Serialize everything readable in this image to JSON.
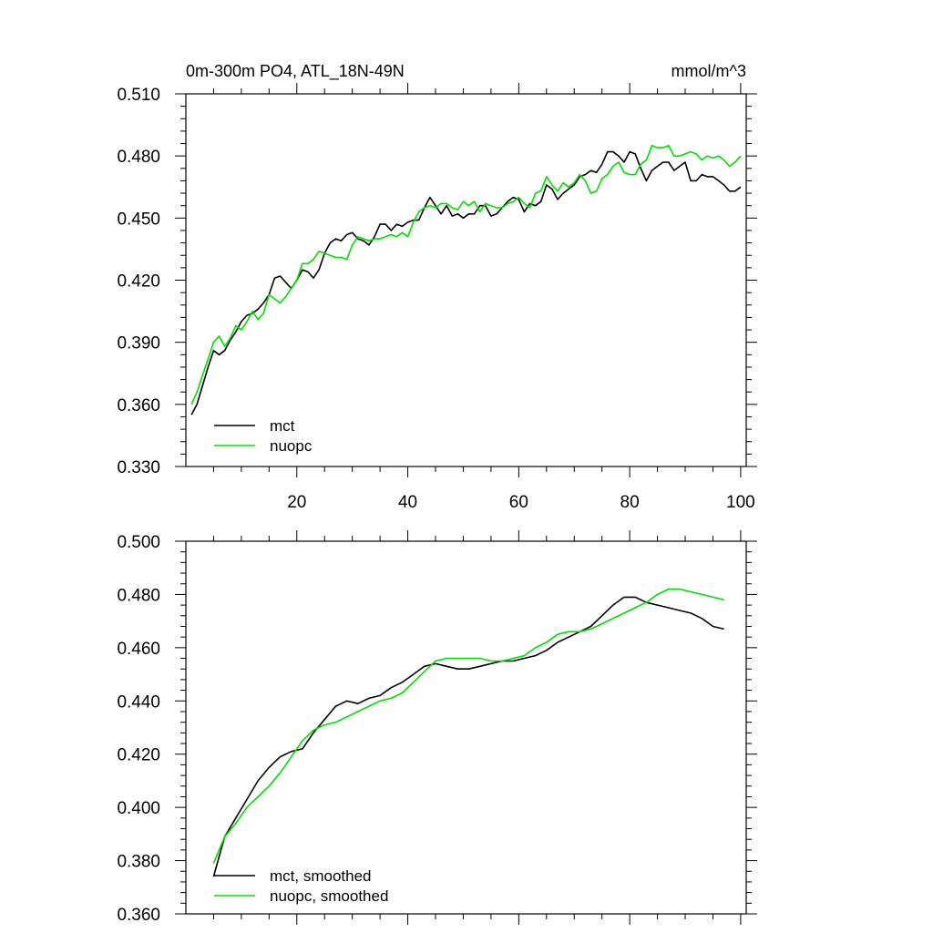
{
  "chart_data": [
    {
      "type": "line",
      "title": "0m-300m PO4, ATL_18N-49N",
      "units": "mmol/m^3",
      "xlim": [
        0,
        101
      ],
      "ylim": [
        0.33,
        0.51
      ],
      "xticks": [
        20,
        40,
        60,
        80,
        100
      ],
      "xtick_labels": [
        "20",
        "40",
        "60",
        "80",
        "100"
      ],
      "yticks": [
        0.33,
        0.36,
        0.39,
        0.42,
        0.45,
        0.48,
        0.51
      ],
      "ytick_labels": [
        "0.330",
        "0.360",
        "0.390",
        "0.420",
        "0.450",
        "0.480",
        "0.510"
      ],
      "legend_position": "lower-left",
      "series": [
        {
          "name": "mct",
          "color": "#000000",
          "x": [
            1,
            2,
            3,
            4,
            5,
            6,
            7,
            8,
            9,
            10,
            11,
            12,
            13,
            14,
            15,
            16,
            17,
            18,
            19,
            20,
            21,
            22,
            23,
            24,
            25,
            26,
            27,
            28,
            29,
            30,
            31,
            32,
            33,
            34,
            35,
            36,
            37,
            38,
            39,
            40,
            41,
            42,
            43,
            44,
            45,
            46,
            47,
            48,
            49,
            50,
            51,
            52,
            53,
            54,
            55,
            56,
            57,
            58,
            59,
            60,
            61,
            62,
            63,
            64,
            65,
            66,
            67,
            68,
            69,
            70,
            71,
            72,
            73,
            74,
            75,
            76,
            77,
            78,
            79,
            80,
            81,
            82,
            83,
            84,
            85,
            86,
            87,
            88,
            89,
            90,
            91,
            92,
            93,
            94,
            95,
            96,
            97,
            98,
            99,
            100
          ],
          "values": [
            0.355,
            0.36,
            0.369,
            0.378,
            0.386,
            0.384,
            0.386,
            0.391,
            0.395,
            0.4,
            0.403,
            0.404,
            0.406,
            0.409,
            0.413,
            0.421,
            0.422,
            0.419,
            0.416,
            0.42,
            0.425,
            0.424,
            0.421,
            0.425,
            0.433,
            0.438,
            0.44,
            0.439,
            0.442,
            0.443,
            0.44,
            0.439,
            0.437,
            0.441,
            0.447,
            0.447,
            0.444,
            0.447,
            0.446,
            0.448,
            0.449,
            0.449,
            0.455,
            0.46,
            0.456,
            0.452,
            0.456,
            0.451,
            0.452,
            0.45,
            0.452,
            0.452,
            0.456,
            0.456,
            0.451,
            0.452,
            0.455,
            0.458,
            0.46,
            0.459,
            0.453,
            0.457,
            0.456,
            0.458,
            0.466,
            0.464,
            0.459,
            0.462,
            0.464,
            0.466,
            0.47,
            0.471,
            0.473,
            0.472,
            0.476,
            0.482,
            0.482,
            0.48,
            0.477,
            0.482,
            0.481,
            0.474,
            0.468,
            0.473,
            0.475,
            0.477,
            0.477,
            0.473,
            0.475,
            0.477,
            0.468,
            0.468,
            0.471,
            0.47,
            0.47,
            0.468,
            0.466,
            0.463,
            0.463,
            0.465
          ]
        },
        {
          "name": "nuopc",
          "color": "#00e000",
          "x": [
            1,
            2,
            3,
            4,
            5,
            6,
            7,
            8,
            9,
            10,
            11,
            12,
            13,
            14,
            15,
            16,
            17,
            18,
            19,
            20,
            21,
            22,
            23,
            24,
            25,
            26,
            27,
            28,
            29,
            30,
            31,
            32,
            33,
            34,
            35,
            36,
            37,
            38,
            39,
            40,
            41,
            42,
            43,
            44,
            45,
            46,
            47,
            48,
            49,
            50,
            51,
            52,
            53,
            54,
            55,
            56,
            57,
            58,
            59,
            60,
            61,
            62,
            63,
            64,
            65,
            66,
            67,
            68,
            69,
            70,
            71,
            72,
            73,
            74,
            75,
            76,
            77,
            78,
            79,
            80,
            81,
            82,
            83,
            84,
            85,
            86,
            87,
            88,
            89,
            90,
            91,
            92,
            93,
            94,
            95,
            96,
            97,
            98,
            99,
            100
          ],
          "values": [
            0.36,
            0.366,
            0.374,
            0.382,
            0.39,
            0.393,
            0.388,
            0.392,
            0.398,
            0.396,
            0.4,
            0.405,
            0.401,
            0.404,
            0.413,
            0.411,
            0.409,
            0.412,
            0.416,
            0.42,
            0.428,
            0.428,
            0.43,
            0.434,
            0.433,
            0.432,
            0.431,
            0.431,
            0.43,
            0.437,
            0.441,
            0.44,
            0.439,
            0.44,
            0.44,
            0.441,
            0.442,
            0.441,
            0.443,
            0.441,
            0.448,
            0.453,
            0.455,
            0.456,
            0.455,
            0.457,
            0.457,
            0.455,
            0.454,
            0.458,
            0.456,
            0.458,
            0.453,
            0.457,
            0.456,
            0.455,
            0.455,
            0.457,
            0.458,
            0.46,
            0.457,
            0.455,
            0.462,
            0.463,
            0.47,
            0.466,
            0.463,
            0.467,
            0.465,
            0.467,
            0.471,
            0.468,
            0.462,
            0.463,
            0.469,
            0.471,
            0.475,
            0.477,
            0.472,
            0.471,
            0.471,
            0.476,
            0.478,
            0.485,
            0.484,
            0.484,
            0.485,
            0.48,
            0.48,
            0.481,
            0.482,
            0.481,
            0.478,
            0.48,
            0.479,
            0.48,
            0.478,
            0.475,
            0.477,
            0.48
          ]
        }
      ]
    },
    {
      "type": "line",
      "title": "",
      "units": "",
      "xlim": [
        0,
        101
      ],
      "ylim": [
        0.36,
        0.5
      ],
      "xticks": [
        20,
        40,
        60,
        80,
        100
      ],
      "xtick_labels": [],
      "yticks": [
        0.36,
        0.38,
        0.4,
        0.42,
        0.44,
        0.46,
        0.48,
        0.5
      ],
      "ytick_labels": [
        "0.360",
        "0.380",
        "0.400",
        "0.420",
        "0.440",
        "0.460",
        "0.480",
        "0.500"
      ],
      "legend_position": "lower-left",
      "series": [
        {
          "name": "mct, smoothed",
          "color": "#000000",
          "x": [
            5,
            7,
            9,
            11,
            13,
            15,
            17,
            19,
            21,
            23,
            25,
            27,
            29,
            31,
            33,
            35,
            37,
            39,
            41,
            43,
            45,
            47,
            49,
            51,
            53,
            55,
            57,
            59,
            61,
            63,
            65,
            67,
            69,
            71,
            73,
            75,
            77,
            79,
            81,
            83,
            85,
            87,
            89,
            91,
            93,
            95,
            97
          ],
          "values": [
            0.374,
            0.389,
            0.396,
            0.403,
            0.41,
            0.415,
            0.419,
            0.421,
            0.422,
            0.428,
            0.433,
            0.438,
            0.44,
            0.439,
            0.441,
            0.442,
            0.445,
            0.447,
            0.45,
            0.453,
            0.454,
            0.453,
            0.452,
            0.452,
            0.453,
            0.454,
            0.455,
            0.455,
            0.456,
            0.457,
            0.459,
            0.462,
            0.464,
            0.466,
            0.468,
            0.472,
            0.476,
            0.479,
            0.479,
            0.477,
            0.476,
            0.475,
            0.474,
            0.473,
            0.471,
            0.468,
            0.467
          ]
        },
        {
          "name": "nuopc, smoothed",
          "color": "#00e000",
          "x": [
            5,
            7,
            9,
            11,
            13,
            15,
            17,
            19,
            21,
            23,
            25,
            27,
            29,
            31,
            33,
            35,
            37,
            39,
            41,
            43,
            45,
            47,
            49,
            51,
            53,
            55,
            57,
            59,
            61,
            63,
            65,
            67,
            69,
            71,
            73,
            75,
            77,
            79,
            81,
            83,
            85,
            87,
            89,
            91,
            93,
            95,
            97
          ],
          "values": [
            0.379,
            0.389,
            0.394,
            0.4,
            0.404,
            0.408,
            0.413,
            0.419,
            0.425,
            0.429,
            0.431,
            0.432,
            0.434,
            0.436,
            0.438,
            0.44,
            0.441,
            0.443,
            0.447,
            0.451,
            0.455,
            0.456,
            0.456,
            0.456,
            0.456,
            0.455,
            0.455,
            0.456,
            0.457,
            0.46,
            0.462,
            0.465,
            0.466,
            0.466,
            0.467,
            0.469,
            0.471,
            0.473,
            0.475,
            0.477,
            0.48,
            0.482,
            0.482,
            0.481,
            0.48,
            0.479,
            0.478
          ]
        }
      ]
    }
  ]
}
